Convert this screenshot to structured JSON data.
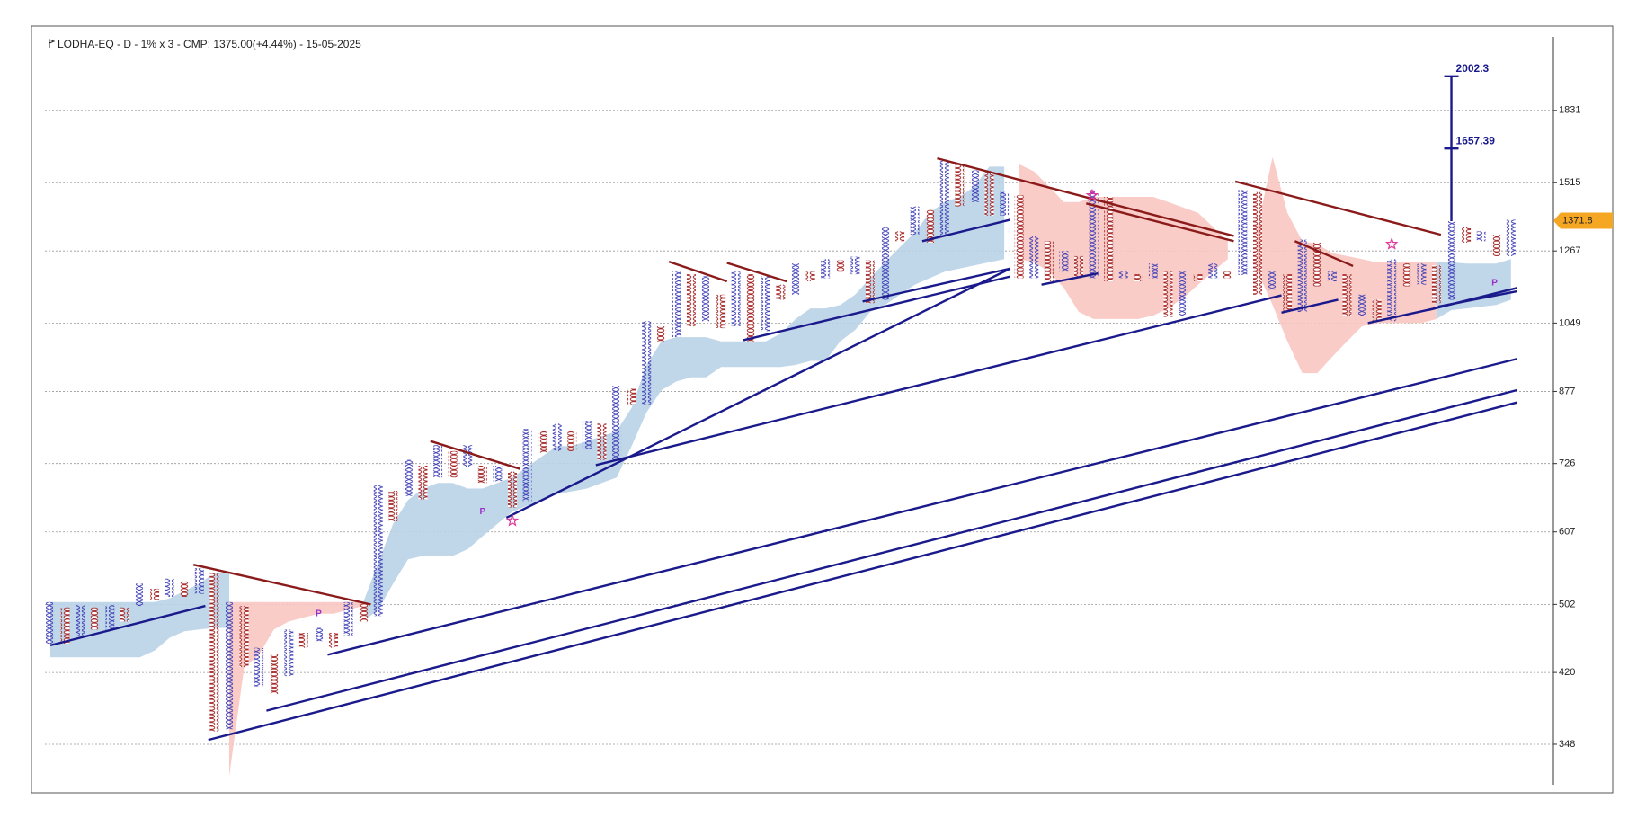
{
  "chart_data": {
    "type": "pnf",
    "title": "LODHA-EQ - D - 1% x 3 - CMP: 1375.00(+4.44%) - 15-05-2025",
    "log_scale": true,
    "grid": true,
    "ylim": [
      313,
      2220
    ],
    "yticks": [
      348,
      420,
      502,
      607,
      726,
      877,
      1049,
      1267,
      1515,
      1831
    ],
    "x_color": "#3b3bb5",
    "o_color": "#a32222",
    "columns": [
      {
        "box": "X",
        "low": 453,
        "high": 505
      },
      {
        "box": "O",
        "low": 453,
        "high": 498
      },
      {
        "box": "X",
        "low": 463,
        "high": 501
      },
      {
        "box": "O",
        "low": 470,
        "high": 498
      },
      {
        "box": "X",
        "low": 470,
        "high": 501
      },
      {
        "box": "O",
        "low": 480,
        "high": 498
      },
      {
        "box": "X",
        "low": 500,
        "high": 530
      },
      {
        "box": "O",
        "low": 508,
        "high": 523
      },
      {
        "box": "X",
        "low": 512,
        "high": 537
      },
      {
        "box": "O",
        "low": 512,
        "high": 533
      },
      {
        "box": "X",
        "low": 516,
        "high": 552
      },
      {
        "box": "O",
        "low": 360,
        "high": 545
      },
      {
        "box": "X",
        "low": 362,
        "high": 505
      },
      {
        "box": "O",
        "low": 426,
        "high": 500
      },
      {
        "box": "X",
        "low": 405,
        "high": 448
      },
      {
        "box": "O",
        "low": 397,
        "high": 441
      },
      {
        "box": "X",
        "low": 416,
        "high": 470
      },
      {
        "box": "O",
        "low": 448,
        "high": 466
      },
      {
        "box": "X",
        "low": 456,
        "high": 472
      },
      {
        "box": "O",
        "low": 448,
        "high": 466
      },
      {
        "box": "X",
        "low": 463,
        "high": 505
      },
      {
        "box": "O",
        "low": 480,
        "high": 503
      },
      {
        "box": "X",
        "low": 487,
        "high": 686
      },
      {
        "box": "O",
        "low": 624,
        "high": 676
      },
      {
        "box": "X",
        "low": 667,
        "high": 733
      },
      {
        "box": "O",
        "low": 661,
        "high": 722
      },
      {
        "box": "X",
        "low": 700,
        "high": 762
      },
      {
        "box": "O",
        "low": 700,
        "high": 750
      },
      {
        "box": "X",
        "low": 720,
        "high": 762
      },
      {
        "box": "O",
        "low": 690,
        "high": 722
      },
      {
        "box": "X",
        "low": 693,
        "high": 722
      },
      {
        "box": "O",
        "low": 647,
        "high": 711
      },
      {
        "box": "X",
        "low": 658,
        "high": 795
      },
      {
        "box": "O",
        "low": 747,
        "high": 790
      },
      {
        "box": "X",
        "low": 750,
        "high": 806
      },
      {
        "box": "O",
        "low": 750,
        "high": 790
      },
      {
        "box": "X",
        "low": 755,
        "high": 812
      },
      {
        "box": "O",
        "low": 733,
        "high": 806
      },
      {
        "box": "X",
        "low": 733,
        "high": 890
      },
      {
        "box": "O",
        "low": 848,
        "high": 883
      },
      {
        "box": "X",
        "low": 848,
        "high": 1054
      },
      {
        "box": "O",
        "low": 1000,
        "high": 1040
      },
      {
        "box": "X",
        "low": 1011,
        "high": 1200
      },
      {
        "box": "O",
        "low": 1040,
        "high": 1192
      },
      {
        "box": "X",
        "low": 1054,
        "high": 1186
      },
      {
        "box": "O",
        "low": 1035,
        "high": 1130
      },
      {
        "box": "X",
        "low": 1040,
        "high": 1200
      },
      {
        "box": "O",
        "low": 1000,
        "high": 1192
      },
      {
        "box": "X",
        "low": 1027,
        "high": 1186
      },
      {
        "box": "O",
        "low": 1115,
        "high": 1160
      },
      {
        "box": "X",
        "low": 1130,
        "high": 1226
      },
      {
        "box": "O",
        "low": 1170,
        "high": 1200
      },
      {
        "box": "X",
        "low": 1180,
        "high": 1240
      },
      {
        "box": "O",
        "low": 1200,
        "high": 1236
      },
      {
        "box": "X",
        "low": 1192,
        "high": 1248
      },
      {
        "box": "O",
        "low": 1105,
        "high": 1236
      },
      {
        "box": "X",
        "low": 1115,
        "high": 1347
      },
      {
        "box": "O",
        "low": 1300,
        "high": 1334
      },
      {
        "box": "X",
        "low": 1322,
        "high": 1424
      },
      {
        "box": "O",
        "low": 1295,
        "high": 1410
      },
      {
        "box": "X",
        "low": 1318,
        "high": 1610
      },
      {
        "box": "O",
        "low": 1424,
        "high": 1590
      },
      {
        "box": "X",
        "low": 1440,
        "high": 1565
      },
      {
        "box": "O",
        "low": 1390,
        "high": 1557
      },
      {
        "box": "X",
        "low": 1390,
        "high": 1478
      },
      {
        "box": "O",
        "low": 1180,
        "high": 1466
      },
      {
        "box": "X",
        "low": 1180,
        "high": 1318
      },
      {
        "box": "O",
        "low": 1170,
        "high": 1300
      },
      {
        "box": "X",
        "low": 1200,
        "high": 1267
      },
      {
        "box": "O",
        "low": 1180,
        "high": 1250
      },
      {
        "box": "X",
        "low": 1180,
        "high": 1478
      },
      {
        "box": "O",
        "low": 1170,
        "high": 1460
      },
      {
        "box": "X",
        "low": 1180,
        "high": 1200
      },
      {
        "box": "O",
        "low": 1170,
        "high": 1192
      },
      {
        "box": "X",
        "low": 1180,
        "high": 1226
      },
      {
        "box": "O",
        "low": 1066,
        "high": 1200
      },
      {
        "box": "X",
        "low": 1070,
        "high": 1200
      },
      {
        "box": "O",
        "low": 1170,
        "high": 1192
      },
      {
        "box": "X",
        "low": 1180,
        "high": 1226
      },
      {
        "box": "O",
        "low": 1180,
        "high": 1200
      },
      {
        "box": "X",
        "low": 1190,
        "high": 1486
      },
      {
        "box": "O",
        "low": 1130,
        "high": 1478
      },
      {
        "box": "X",
        "low": 1145,
        "high": 1200
      },
      {
        "box": "O",
        "low": 1080,
        "high": 1192
      },
      {
        "box": "X",
        "low": 1080,
        "high": 1305
      },
      {
        "box": "O",
        "low": 1155,
        "high": 1295
      },
      {
        "box": "X",
        "low": 1170,
        "high": 1200
      },
      {
        "box": "O",
        "low": 1070,
        "high": 1192
      },
      {
        "box": "X",
        "low": 1070,
        "high": 1130
      },
      {
        "box": "O",
        "low": 1054,
        "high": 1115
      },
      {
        "box": "X",
        "low": 1054,
        "high": 1240
      },
      {
        "box": "O",
        "low": 1155,
        "high": 1226
      },
      {
        "box": "X",
        "low": 1160,
        "high": 1226
      },
      {
        "box": "O",
        "low": 1105,
        "high": 1220
      },
      {
        "box": "X",
        "low": 1115,
        "high": 1370
      },
      {
        "box": "O",
        "low": 1295,
        "high": 1350
      },
      {
        "box": "X",
        "low": 1300,
        "high": 1334
      },
      {
        "box": "O",
        "low": 1250,
        "high": 1322
      },
      {
        "box": "X",
        "low": 1250,
        "high": 1375
      }
    ],
    "clouds": [
      {
        "color": "#b9d2e7",
        "start": 0,
        "upper": [
          505,
          505,
          505,
          505,
          505,
          505,
          505,
          505,
          510,
          520,
          530,
          545,
          545
        ],
        "lower": [
          437,
          437,
          437,
          437,
          437,
          437,
          437,
          445,
          460,
          468,
          470,
          472,
          472
        ]
      },
      {
        "color": "#f8c6c2",
        "start": 12,
        "upper": [
          505,
          505,
          505,
          505,
          505,
          505,
          505,
          505,
          505,
          505
        ],
        "lower": [
          320,
          425,
          440,
          470,
          480,
          485,
          490,
          490,
          495,
          500
        ]
      },
      {
        "color": "#b9d2e7",
        "start": 21,
        "upper": [
          505,
          560,
          620,
          660,
          680,
          690,
          690,
          680,
          680,
          690,
          700,
          720,
          740,
          760,
          760,
          770,
          780,
          790,
          840,
          940,
          1000,
          1011,
          1011,
          1011,
          1000,
          1000,
          1000,
          1000,
          1020,
          1060,
          1090,
          1090,
          1100,
          1130,
          1180,
          1230,
          1280,
          1330,
          1400,
          1440,
          1460,
          1500,
          1580,
          1580
        ],
        "lower": [
          480,
          495,
          530,
          565,
          570,
          570,
          570,
          580,
          600,
          620,
          640,
          650,
          660,
          670,
          675,
          680,
          690,
          700,
          760,
          830,
          880,
          900,
          910,
          910,
          935,
          935,
          935,
          935,
          935,
          940,
          950,
          950,
          1000,
          1030,
          1080,
          1100,
          1130,
          1160,
          1180,
          1200,
          1210,
          1220,
          1230,
          1240
        ]
      },
      {
        "color": "#f8c6c2",
        "start": 65,
        "upper": [
          1590,
          1560,
          1500,
          1440,
          1440,
          1460,
          1460,
          1460,
          1460,
          1460,
          1440,
          1420,
          1400,
          1350,
          1300
        ],
        "lower": [
          1240,
          1230,
          1200,
          1150,
          1080,
          1060,
          1060,
          1060,
          1060,
          1070,
          1090,
          1120,
          1160,
          1200,
          1240
        ]
      },
      {
        "color": "#f8c6c2",
        "start": 81,
        "upper": [
          1350,
          1620,
          1400,
          1300,
          1290,
          1260,
          1250,
          1240,
          1230,
          1230,
          1230,
          1230,
          1230
        ],
        "lower": [
          1200,
          1100,
          1000,
          920,
          920,
          960,
          1000,
          1040,
          1049,
          1049,
          1049,
          1049,
          1060
        ]
      },
      {
        "color": "#b9d2e7",
        "start": 93,
        "upper": [
          1230,
          1230,
          1226,
          1226,
          1226,
          1240
        ],
        "lower": [
          1060,
          1085,
          1090,
          1095,
          1100,
          1115
        ]
      }
    ],
    "trendlines": [
      {
        "from": [
          0,
          451
        ],
        "to": [
          10.4,
          500
        ],
        "color": "#1a1a8c"
      },
      {
        "from": [
          10.6,
          352
        ],
        "to": [
          98.4,
          852
        ],
        "color": "#1a1a8c"
      },
      {
        "from": [
          14.5,
          380
        ],
        "to": [
          98.4,
          880
        ],
        "color": "#1a1a8c"
      },
      {
        "from": [
          18.6,
          440
        ],
        "to": [
          98.4,
          955
        ],
        "color": "#1a1a8c"
      },
      {
        "from": [
          36.6,
          723
        ],
        "to": [
          82.6,
          1128
        ],
        "color": "#1a1a8c"
      },
      {
        "from": [
          30.6,
          630
        ],
        "to": [
          64.4,
          1210
        ],
        "color": "#1a1a8c"
      },
      {
        "from": [
          46.5,
          1003
        ],
        "to": [
          64.4,
          1185
        ],
        "color": "#1a1a8c"
      },
      {
        "from": [
          54.5,
          1110
        ],
        "to": [
          64.4,
          1210
        ],
        "color": "#1a1a8c"
      },
      {
        "from": [
          58.5,
          1300
        ],
        "to": [
          64.4,
          1375
        ],
        "color": "#1a1a8c"
      },
      {
        "from": [
          66.5,
          1160
        ],
        "to": [
          70.3,
          1195
        ],
        "color": "#1a1a8c"
      },
      {
        "from": [
          82.6,
          1078
        ],
        "to": [
          86.4,
          1115
        ],
        "color": "#1a1a8c"
      },
      {
        "from": [
          88.4,
          1049
        ],
        "to": [
          92.9,
          1090
        ],
        "color": "#1a1a8c"
      },
      {
        "from": [
          92.4,
          1085
        ],
        "to": [
          98.4,
          1150
        ],
        "color": "#1a1a8c"
      },
      {
        "from": [
          93.1,
          1095
        ],
        "to": [
          98.4,
          1140
        ],
        "color": "#1a1a8c"
      },
      {
        "from": [
          9.6,
          557
        ],
        "to": [
          21.5,
          502
        ],
        "color": "#8b1a1a"
      },
      {
        "from": [
          25.5,
          770
        ],
        "to": [
          31.5,
          716
        ],
        "color": "#8b1a1a"
      },
      {
        "from": [
          41.5,
          1232
        ],
        "to": [
          45.4,
          1170
        ],
        "color": "#8b1a1a"
      },
      {
        "from": [
          45.4,
          1228
        ],
        "to": [
          49.4,
          1170
        ],
        "color": "#8b1a1a"
      },
      {
        "from": [
          59.5,
          1615
        ],
        "to": [
          79.4,
          1318
        ],
        "color": "#8b1a1a"
      },
      {
        "from": [
          69.5,
          1435
        ],
        "to": [
          79.4,
          1300
        ],
        "color": "#8b1a1a"
      },
      {
        "from": [
          79.5,
          1520
        ],
        "to": [
          93.3,
          1322
        ],
        "color": "#8b1a1a"
      },
      {
        "from": [
          83.5,
          1300
        ],
        "to": [
          87.4,
          1218
        ],
        "color": "#8b1a1a"
      }
    ],
    "targets": [
      2002.3,
      1657.39
    ],
    "target_column": 94,
    "p_markers": [
      {
        "col": 29,
        "price": 640,
        "label": "P"
      },
      {
        "col": 18,
        "price": 490,
        "label": "P"
      },
      {
        "col": 69.9,
        "price": 1470,
        "label": "P"
      },
      {
        "col": 96.9,
        "price": 1165,
        "label": "P"
      }
    ],
    "stars": [
      {
        "col": 31,
        "price": 625
      },
      {
        "col": 69.9,
        "price": 1465
      },
      {
        "col": 90,
        "price": 1290
      }
    ],
    "price_tag": 1371.8,
    "price_tag_color": "#f5a623"
  }
}
